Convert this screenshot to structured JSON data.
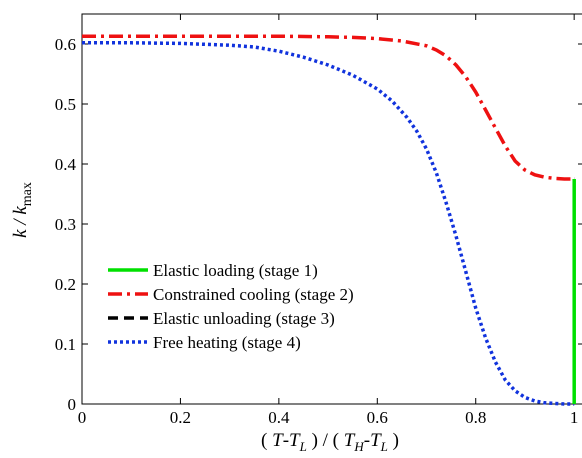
{
  "chart_data": {
    "type": "line",
    "xlabel": "( T-T_L ) / ( T_H-T_L )",
    "ylabel": "k / k_max",
    "xlim": [
      0,
      1.02
    ],
    "ylim": [
      0,
      0.65
    ],
    "x_ticks": [
      "0",
      "0.2",
      "0.4",
      "0.6",
      "0.8",
      "1"
    ],
    "y_ticks": [
      "0",
      "0.1",
      "0.2",
      "0.3",
      "0.4",
      "0.5",
      "0.6"
    ],
    "grid": false,
    "legend_position": "lower-left",
    "series": [
      {
        "name": "Elastic loading (stage 1)",
        "color": "#00e000",
        "style": "solid",
        "x": [
          1,
          1
        ],
        "y": [
          0,
          0.375
        ]
      },
      {
        "name": "Constrained cooling (stage 2)",
        "color": "#ee1111",
        "style": "dashdot",
        "x": [
          0,
          0.1,
          0.2,
          0.3,
          0.4,
          0.5,
          0.55,
          0.6,
          0.65,
          0.7,
          0.72,
          0.74,
          0.76,
          0.78,
          0.8,
          0.82,
          0.84,
          0.86,
          0.88,
          0.9,
          0.92,
          0.94,
          0.96,
          0.98,
          1
        ],
        "y": [
          0.613,
          0.613,
          0.613,
          0.613,
          0.613,
          0.612,
          0.611,
          0.609,
          0.605,
          0.597,
          0.59,
          0.58,
          0.565,
          0.545,
          0.52,
          0.49,
          0.46,
          0.43,
          0.405,
          0.39,
          0.382,
          0.378,
          0.376,
          0.375,
          0.375
        ]
      },
      {
        "name": "Elastic unloading (stage 3)",
        "color": "#000000",
        "style": "dashed",
        "x": [
          1,
          1
        ],
        "y": [
          0.375,
          0.375
        ]
      },
      {
        "name": "Free heating (stage 4)",
        "color": "#1133dd",
        "style": "dotted",
        "x": [
          0,
          0.1,
          0.2,
          0.3,
          0.35,
          0.4,
          0.45,
          0.5,
          0.55,
          0.6,
          0.63,
          0.66,
          0.68,
          0.7,
          0.72,
          0.74,
          0.76,
          0.78,
          0.8,
          0.82,
          0.84,
          0.86,
          0.88,
          0.9,
          0.92,
          0.94,
          0.96,
          0.98,
          1
        ],
        "y": [
          0.602,
          0.602,
          0.601,
          0.598,
          0.595,
          0.588,
          0.578,
          0.565,
          0.548,
          0.525,
          0.505,
          0.478,
          0.455,
          0.425,
          0.385,
          0.335,
          0.28,
          0.22,
          0.16,
          0.11,
          0.07,
          0.04,
          0.022,
          0.011,
          0.005,
          0.002,
          0.001,
          0,
          0
        ]
      }
    ]
  }
}
